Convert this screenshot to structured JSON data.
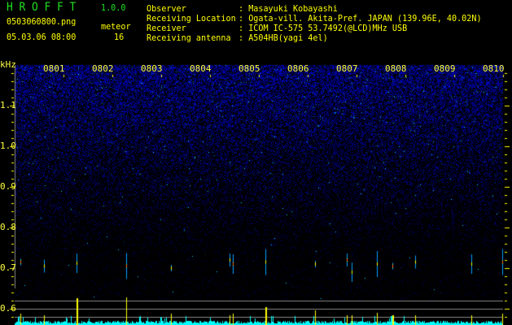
{
  "app": {
    "name": "H R O F F T",
    "version": "1.0.0"
  },
  "file": {
    "filename": "0503060800.png",
    "datetime": "05.03.06 08:00",
    "meteor_label": "meteor",
    "meteor_count": "16"
  },
  "info": [
    {
      "label": "Observer",
      "value": "Masayuki Kobayashi"
    },
    {
      "label": "Receiving Location",
      "value": "Ogata-vill. Akita-Pref. JAPAN (139.96E, 40.02N)"
    },
    {
      "label": "Receiver",
      "value": "ICOM IC-575 53.7492(@LCD)MHz USB"
    },
    {
      "label": "Receiving antenna",
      "value": "A504HB(yagi 4el)"
    }
  ],
  "axis": {
    "y_unit": "kHz",
    "y_labels": [
      "1.1",
      "1.0",
      "0.9",
      "0.8",
      "0.7",
      "0.6"
    ],
    "y_range_khz": [
      0.56,
      1.2
    ],
    "x_labels": [
      "0801",
      "0802",
      "0803",
      "0804",
      "0805",
      "0806",
      "0807",
      "0808",
      "0809",
      "0810"
    ],
    "x_range_min": [
      0,
      10
    ]
  },
  "colors": {
    "text": "#ffff00",
    "title": "#20e020",
    "background": "#000000",
    "noise": "#1010a0",
    "histogram": "#00ffff",
    "spike": "#ffff00"
  },
  "chart_data": {
    "type": "heatmap",
    "xlabel": "",
    "ylabel": "kHz",
    "echoes_min_khz": [
      [
        0.12,
        0.715
      ],
      [
        0.6,
        0.705
      ],
      [
        1.27,
        0.712
      ],
      [
        2.28,
        0.705
      ],
      [
        3.2,
        0.7
      ],
      [
        4.4,
        0.72
      ],
      [
        4.47,
        0.71
      ],
      [
        5.13,
        0.715
      ],
      [
        6.15,
        0.71
      ],
      [
        6.8,
        0.72
      ],
      [
        6.9,
        0.69
      ],
      [
        7.41,
        0.71
      ],
      [
        7.73,
        0.705
      ],
      [
        8.2,
        0.715
      ],
      [
        9.35,
        0.71
      ],
      [
        9.98,
        0.715
      ]
    ]
  }
}
